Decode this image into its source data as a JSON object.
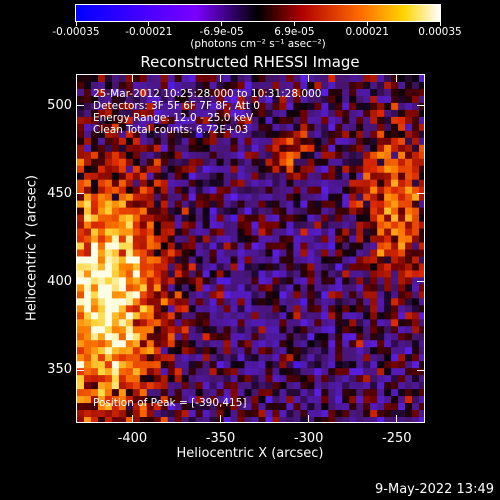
{
  "colorbar": {
    "labels": [
      "-0.00035",
      "-0.00021",
      "-6.9e-05",
      "6.9e-05",
      "0.00021",
      "0.00035"
    ],
    "units": "(photons cm⁻² s⁻¹ asec⁻²)",
    "range": [
      -0.00035,
      0.00035
    ]
  },
  "plot": {
    "title": "Reconstructed RHESSI Image",
    "info": [
      "25-Mar-2012 10:25:28.000 to 10:31:28.000",
      "Detectors: 3F 5F 6F 7F 8F, Att 0",
      "Energy Range: 12.0 - 25.0 keV",
      "Clean     Total counts: 6.72E+03"
    ],
    "peak": "Position of Peak = [-390,415]",
    "xlabel": "Heliocentric X (arcsec)",
    "ylabel": "Heliocentric Y (arcsec)",
    "xticks": [
      "-400",
      "-350",
      "-300",
      "-250"
    ],
    "yticks": [
      "350",
      "400",
      "450",
      "500"
    ],
    "xlim": [
      -432,
      -234
    ],
    "ylim": [
      320,
      518
    ]
  },
  "timestamp": "9-May-2022 13:49"
}
